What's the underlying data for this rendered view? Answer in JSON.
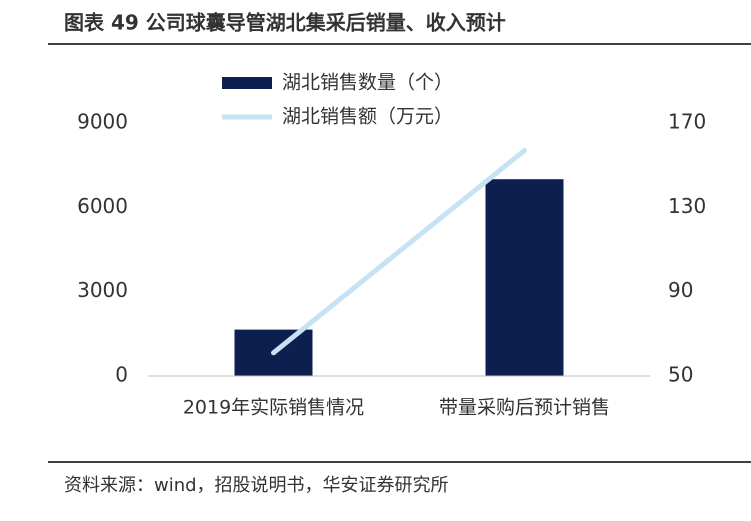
{
  "chart_data": {
    "type": "bar-line",
    "title": "图表 49 公司球囊导管湖北集采后销量、收入预计",
    "source": "资料来源：wind，招股说明书，华安证券研究所",
    "categories": [
      "2019年实际销售情况",
      "带量采购后预计销售"
    ],
    "series": [
      {
        "name": "湖北销售数量（个）",
        "type": "bar",
        "color": "#0c1f4f",
        "values": [
          1650,
          7000
        ]
      },
      {
        "name": "湖北销售额（万元）",
        "type": "line",
        "axis": "y2",
        "color": "#c5e3f5",
        "values": [
          61,
          157
        ]
      }
    ],
    "ylim": [
      0,
      9000
    ],
    "yticks": [
      0,
      3000,
      6000,
      9000
    ],
    "y2lim": [
      50,
      170
    ],
    "y2ticks": [
      50,
      90,
      130,
      170
    ],
    "grid": false
  }
}
